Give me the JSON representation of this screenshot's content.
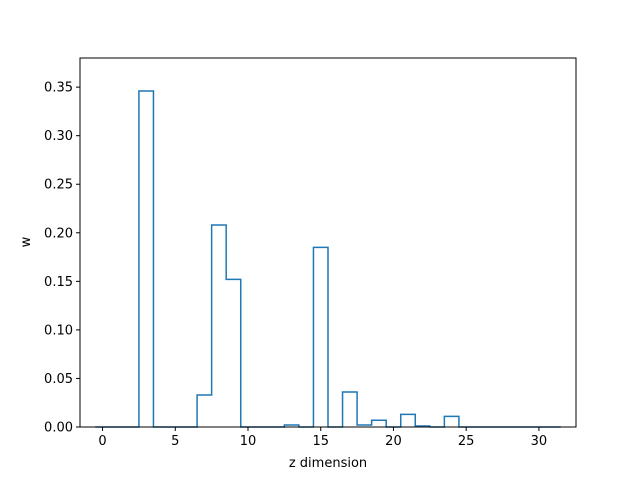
{
  "chart_data": {
    "type": "histogram-step",
    "xlabel": "z dimension",
    "ylabel": "w",
    "xlim": [
      -1.55,
      32.55
    ],
    "ylim": [
      0,
      0.38
    ],
    "xticks": [
      0,
      5,
      10,
      15,
      20,
      25,
      30
    ],
    "xtick_labels": [
      "0",
      "5",
      "10",
      "15",
      "20",
      "25",
      "30"
    ],
    "yticks": [
      0,
      0.05,
      0.1,
      0.15,
      0.2,
      0.25,
      0.3,
      0.35
    ],
    "ytick_labels": [
      "0.00",
      "0.05",
      "0.10",
      "0.15",
      "0.20",
      "0.25",
      "0.30",
      "0.35"
    ],
    "grid": false,
    "series": [
      {
        "color": "#1f77b4",
        "x": [
          0,
          1,
          2,
          3,
          4,
          5,
          6,
          7,
          8,
          9,
          10,
          11,
          12,
          13,
          14,
          15,
          16,
          17,
          18,
          19,
          20,
          21,
          22,
          23,
          24,
          25,
          26,
          27,
          28,
          29,
          30,
          31
        ],
        "values": [
          0,
          0,
          0,
          0.346,
          0,
          0,
          0,
          0.033,
          0.208,
          0.152,
          0,
          0,
          0,
          0.002,
          0,
          0.185,
          0,
          0.036,
          0.002,
          0.007,
          0,
          0.013,
          0.001,
          0,
          0.011,
          0,
          0,
          0,
          0,
          0,
          0,
          0
        ]
      }
    ]
  }
}
